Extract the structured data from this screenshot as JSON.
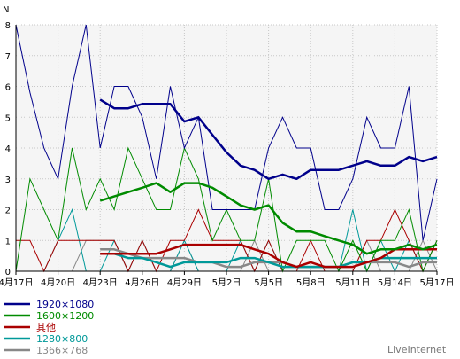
{
  "chart_data": {
    "type": "line",
    "ylabel": "N",
    "ylim": [
      0,
      8
    ],
    "yticks": [
      "0",
      "1",
      "2",
      "3",
      "4",
      "5",
      "6",
      "7",
      "8"
    ],
    "xlabels": [
      "4月17日",
      "4月20日",
      "4月23日",
      "4月26日",
      "4月29日",
      "5月2日",
      "5月5日",
      "5月8日",
      "5月11日",
      "5月14日",
      "5月17日"
    ],
    "x": [
      "4/17",
      "4/18",
      "4/19",
      "4/20",
      "4/21",
      "4/22",
      "4/23",
      "4/24",
      "4/25",
      "4/26",
      "4/27",
      "4/28",
      "4/29",
      "4/30",
      "5/1",
      "5/2",
      "5/3",
      "5/4",
      "5/5",
      "5/6",
      "5/7",
      "5/8",
      "5/9",
      "5/10",
      "5/11",
      "5/12",
      "5/13",
      "5/14",
      "5/15",
      "5/16",
      "5/17"
    ],
    "grid": true,
    "legend_position": "bottom-left",
    "series": [
      {
        "name": "1920×1080",
        "color": "#00008b",
        "daily": [
          8,
          5.8,
          4,
          3,
          6,
          8,
          4,
          6,
          6,
          5,
          3,
          6,
          4,
          5,
          2,
          2,
          2,
          2,
          4,
          5,
          4,
          4,
          2,
          2,
          3,
          5,
          4,
          4,
          6,
          1,
          3
        ],
        "average": [
          null,
          null,
          null,
          null,
          null,
          null,
          5.57,
          5.29,
          5.29,
          5.43,
          5.43,
          5.43,
          4.86,
          5.0,
          4.43,
          3.86,
          3.43,
          3.29,
          3.0,
          3.14,
          3.0,
          3.29,
          3.29,
          3.29,
          3.43,
          3.57,
          3.43,
          3.43,
          3.71,
          3.57,
          3.71
        ]
      },
      {
        "name": "1600×1200",
        "color": "#008b00",
        "daily": [
          0,
          3,
          2,
          1,
          4,
          2,
          3,
          2,
          4,
          3,
          2,
          2,
          4,
          3,
          1,
          2,
          1,
          1,
          3,
          0,
          1,
          1,
          1,
          0,
          1,
          0,
          1,
          1,
          2,
          0,
          1
        ],
        "average": [
          null,
          null,
          null,
          null,
          null,
          null,
          2.29,
          2.43,
          2.57,
          2.71,
          2.86,
          2.57,
          2.86,
          2.86,
          2.71,
          2.43,
          2.14,
          2.0,
          2.14,
          1.57,
          1.29,
          1.29,
          1.14,
          1.0,
          0.86,
          0.57,
          0.71,
          0.71,
          0.86,
          0.71,
          0.86
        ]
      },
      {
        "name": "其他",
        "color": "#aa0000",
        "daily": [
          1,
          1,
          0,
          1,
          1,
          1,
          1,
          1,
          0,
          1,
          0,
          1,
          1,
          2,
          1,
          1,
          1,
          0,
          1,
          0,
          0,
          1,
          0,
          0,
          0,
          1,
          1,
          2,
          1,
          0,
          1
        ],
        "average": [
          null,
          null,
          null,
          null,
          null,
          null,
          0.57,
          0.57,
          0.57,
          0.57,
          0.57,
          0.71,
          0.86,
          0.86,
          0.86,
          0.86,
          0.86,
          0.71,
          0.57,
          0.29,
          0.14,
          0.29,
          0.14,
          0.14,
          0.14,
          0.29,
          0.43,
          0.71,
          0.71,
          0.71,
          0.71
        ]
      },
      {
        "name": "1280×800",
        "color": "#009999",
        "daily": [
          0,
          0,
          0,
          1,
          2,
          0,
          0,
          1,
          0,
          1,
          0,
          0,
          1,
          0,
          0,
          0,
          1,
          0,
          1,
          0,
          0,
          0,
          0,
          0,
          2,
          0,
          1,
          0,
          1,
          0,
          1
        ],
        "average": [
          null,
          null,
          null,
          null,
          null,
          null,
          0.57,
          0.57,
          0.43,
          0.43,
          0.29,
          0.14,
          0.29,
          0.29,
          0.29,
          0.29,
          0.43,
          0.43,
          0.29,
          0.14,
          0.14,
          0.14,
          0.14,
          0.14,
          0.29,
          0.29,
          0.43,
          0.43,
          0.43,
          0.43,
          0.43
        ]
      },
      {
        "name": "1366×768",
        "color": "#888888",
        "daily": [
          0,
          0,
          0,
          0,
          0,
          1,
          1,
          1,
          0,
          0,
          0,
          0,
          1,
          0,
          0,
          0,
          0,
          1,
          0,
          0,
          0,
          0,
          0,
          0,
          0,
          1,
          0,
          0,
          0,
          1,
          0
        ],
        "average": [
          null,
          null,
          null,
          null,
          null,
          null,
          0.71,
          0.71,
          0.57,
          0.43,
          0.43,
          0.43,
          0.43,
          0.29,
          0.29,
          0.14,
          0.14,
          0.29,
          0.29,
          0.29,
          0.14,
          0.14,
          0.14,
          0.14,
          0.29,
          0.29,
          0.29,
          0.29,
          0.14,
          0.29,
          0.29
        ]
      }
    ]
  },
  "brand": "LiveInternet"
}
